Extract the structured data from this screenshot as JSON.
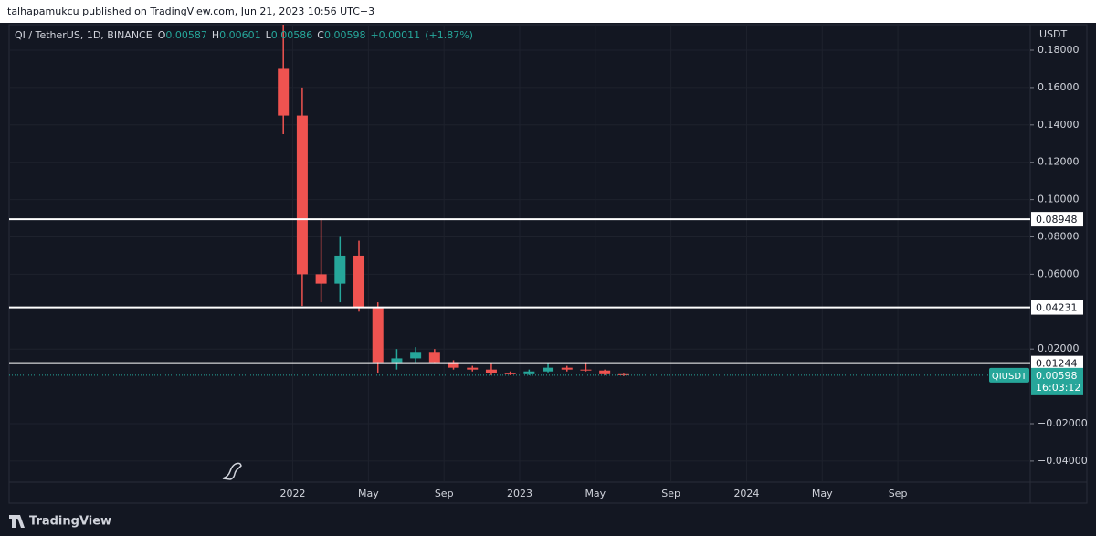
{
  "header": {
    "published": "talhapamukcu published on TradingView.com, Jun 21, 2023 10:56 UTC+3"
  },
  "legend": {
    "symbol": "QI / TetherUS, 1D, BINANCE",
    "ohlc": [
      {
        "key": "O",
        "value": 0.00587
      },
      {
        "key": "H",
        "value": 0.00601
      },
      {
        "key": "L",
        "value": 0.00586
      },
      {
        "key": "C",
        "value": 0.00598
      }
    ],
    "change": {
      "value": 0.00011,
      "label": "+0.00011"
    },
    "change_pct": {
      "value": 1.87,
      "label": "(+1.87%)"
    }
  },
  "chart_data": {
    "type": "candlestick",
    "y_unit": "USDT",
    "up_color": "#26a69a",
    "down_color": "#ef5350",
    "grid": true,
    "x": [
      "2021-12",
      "2022-01",
      "2022-02",
      "2022-03",
      "2022-04",
      "2022-05",
      "2022-06",
      "2022-07",
      "2022-08",
      "2022-09",
      "2022-10",
      "2022-11",
      "2022-12",
      "2023-01",
      "2023-02",
      "2023-03",
      "2023-04",
      "2023-05",
      "2023-06"
    ],
    "open": [
      0.17,
      0.145,
      0.06,
      0.055,
      0.07,
      0.042,
      0.013,
      0.015,
      0.018,
      0.013,
      0.01,
      0.009,
      0.007,
      0.0065,
      0.008,
      0.01,
      0.009,
      0.0085,
      0.0065
    ],
    "high": [
      0.2,
      0.16,
      0.09,
      0.08,
      0.078,
      0.045,
      0.02,
      0.021,
      0.02,
      0.014,
      0.011,
      0.012,
      0.008,
      0.009,
      0.012,
      0.011,
      0.013,
      0.009,
      0.0068
    ],
    "low": [
      0.135,
      0.043,
      0.045,
      0.045,
      0.04,
      0.007,
      0.009,
      0.013,
      0.012,
      0.009,
      0.008,
      0.006,
      0.006,
      0.006,
      0.0075,
      0.008,
      0.008,
      0.006,
      0.0055
    ],
    "close": [
      0.145,
      0.06,
      0.055,
      0.07,
      0.042,
      0.013,
      0.015,
      0.018,
      0.013,
      0.01,
      0.009,
      0.007,
      0.0065,
      0.008,
      0.01,
      0.009,
      0.0085,
      0.0065,
      0.00598
    ],
    "xlim": [
      "2020-10",
      "2025-04"
    ],
    "xticks": [
      {
        "value": "2022-01",
        "label": "2022"
      },
      {
        "value": "2022-05",
        "label": "May"
      },
      {
        "value": "2022-09",
        "label": "Sep"
      },
      {
        "value": "2023-01",
        "label": "2023"
      },
      {
        "value": "2023-05",
        "label": "May"
      },
      {
        "value": "2023-09",
        "label": "Sep"
      },
      {
        "value": "2024-01",
        "label": "2024"
      },
      {
        "value": "2024-05",
        "label": "May"
      },
      {
        "value": "2024-09",
        "label": "Sep"
      }
    ],
    "ylim": [
      -0.0513,
      0.1937
    ],
    "yticks": [
      {
        "value": 0.18,
        "label": "0.18000"
      },
      {
        "value": 0.16,
        "label": "0.16000"
      },
      {
        "value": 0.14,
        "label": "0.14000"
      },
      {
        "value": 0.12,
        "label": "0.12000"
      },
      {
        "value": 0.1,
        "label": "0.10000"
      },
      {
        "value": 0.08,
        "label": "0.08000"
      },
      {
        "value": 0.06,
        "label": "0.06000"
      },
      {
        "value": 0.02,
        "label": "0.02000"
      },
      {
        "value": -0.02,
        "label": "−0.02000"
      },
      {
        "value": -0.04,
        "label": "−0.04000"
      }
    ],
    "levels": [
      0.08948,
      0.04231,
      0.01244
    ],
    "last_price": {
      "symbol": "QIUSDT",
      "value": 0.00598,
      "countdown": "16:03:12"
    }
  },
  "footer": {
    "brand": "TradingView"
  }
}
